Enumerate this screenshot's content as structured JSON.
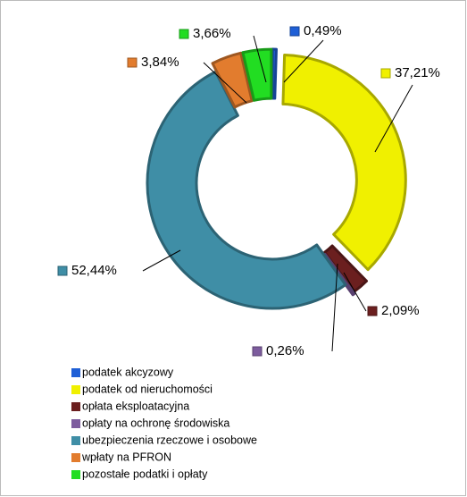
{
  "chart_data": {
    "type": "donut",
    "categories": [
      "podatek akcyzowy",
      "podatek od nieruchomości",
      "opłata eksploatacyjna",
      "opłaty na ochronę środowiska",
      "ubezpieczenia rzeczowe i osobowe",
      "wpłaty na PFRON",
      "pozostałe podatki i opłaty"
    ],
    "values": [
      0.49,
      37.21,
      2.09,
      0.26,
      52.44,
      3.84,
      3.66
    ],
    "value_labels": [
      "0,49%",
      "37,21%",
      "2,09%",
      "0,26%",
      "52,44%",
      "3,84%",
      "3,66%"
    ],
    "colors": [
      "#1f5fd6",
      "#f0f000",
      "#6b1f1f",
      "#7d5c9e",
      "#3f8ea6",
      "#e27c2e",
      "#22dd22"
    ],
    "legend": "bottom-left"
  }
}
